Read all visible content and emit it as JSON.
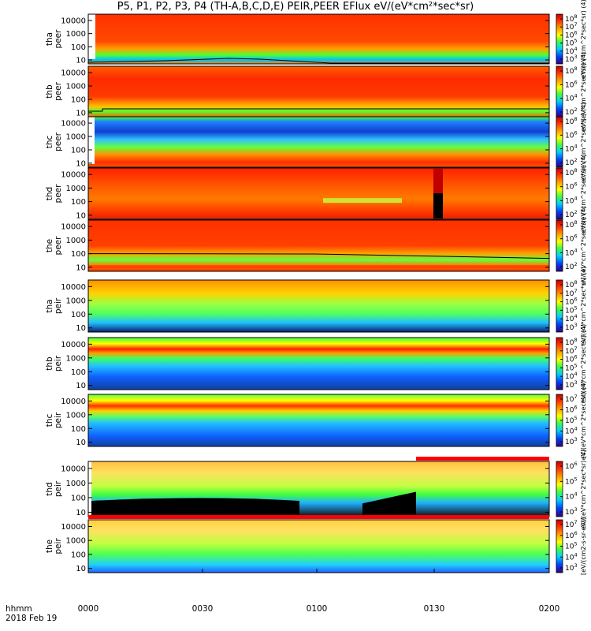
{
  "title": "P5, P1, P2, P3, P4 (TH-A,B,C,D,E) PEIR,PEER EFlux eV/(eV*cm²*sec*sr)",
  "time_axis": {
    "row1": "hhmm",
    "row2": "2018 Feb 19",
    "ticks": [
      "0000",
      "0030",
      "0100",
      "0130",
      "0200"
    ]
  },
  "colorbar_unit_label": "[eV/(cm2-s-sr-eV)]",
  "chart_data": [
    {
      "type": "heatmap",
      "probe": "tha",
      "species": "peer",
      "ylabel": [
        "tha",
        "peer"
      ],
      "y_ticks": [
        "10000",
        "1000",
        "100",
        "10"
      ],
      "ylim": [
        5,
        30000
      ],
      "y_scale": "log",
      "cbar_ticks": [
        "10^8",
        "10^7",
        "10^6",
        "10^5",
        "10^4",
        "10^3"
      ],
      "cbar_label": "eV/(eV*cm^2*sec*sr) (4)"
    },
    {
      "type": "heatmap",
      "probe": "thb",
      "species": "peer",
      "ylabel": [
        "thb",
        "peer"
      ],
      "y_ticks": [
        "10000",
        "1000",
        "100",
        "10"
      ],
      "ylim": [
        5,
        30000
      ],
      "y_scale": "log",
      "cbar_ticks": [
        "10^8",
        "10^6",
        "10^4",
        "10^2"
      ],
      "cbar_label": "eV/(eV*cm^2*sec*sr) (4)"
    },
    {
      "type": "heatmap",
      "probe": "thc",
      "species": "peer",
      "ylabel": [
        "thc",
        "peer"
      ],
      "y_ticks": [
        "10000",
        "1000",
        "100",
        "10"
      ],
      "ylim": [
        5,
        30000
      ],
      "y_scale": "log",
      "cbar_ticks": [
        "10^8",
        "10^6",
        "10^4",
        "10^2"
      ],
      "cbar_label": "eV/(eV*cm^2*sec*sr) (4)"
    },
    {
      "type": "heatmap",
      "probe": "thd",
      "species": "peer",
      "ylabel": [
        "thd",
        "peer"
      ],
      "y_ticks": [
        "10000",
        "1000",
        "100",
        "10"
      ],
      "ylim": [
        5,
        30000
      ],
      "y_scale": "log",
      "cbar_ticks": [
        "10^8",
        "10^6",
        "10^4",
        "10^2"
      ],
      "cbar_label": "eV/(eV*cm^2*sec*sr) (4)"
    },
    {
      "type": "heatmap",
      "probe": "the",
      "species": "peer",
      "ylabel": [
        "the",
        "peer"
      ],
      "y_ticks": [
        "10000",
        "1000",
        "100",
        "10"
      ],
      "ylim": [
        5,
        30000
      ],
      "y_scale": "log",
      "cbar_ticks": [
        "10^8",
        "10^6",
        "10^4",
        "10^2"
      ],
      "cbar_label": "eV/(eV*cm^2*sec*sr) (4)"
    },
    {
      "type": "heatmap",
      "probe": "tha",
      "species": "peir",
      "ylabel": [
        "tha",
        "peir"
      ],
      "y_ticks": [
        "10000",
        "1000",
        "100",
        "10"
      ],
      "ylim": [
        5,
        30000
      ],
      "y_scale": "log",
      "cbar_ticks": [
        "10^8",
        "10^7",
        "10^6",
        "10^5",
        "10^4",
        "10^3"
      ],
      "cbar_label": "eV/(eV*cm^2*sec*sr) (4)"
    },
    {
      "type": "heatmap",
      "probe": "thb",
      "species": "peir",
      "ylabel": [
        "thb",
        "peir"
      ],
      "y_ticks": [
        "10000",
        "1000",
        "100",
        "10"
      ],
      "ylim": [
        5,
        30000
      ],
      "y_scale": "log",
      "cbar_ticks": [
        "10^8",
        "10^7",
        "10^6",
        "10^5",
        "10^4",
        "10^3"
      ],
      "cbar_label": "eV/(eV*cm^2*sec*sr) (4)"
    },
    {
      "type": "heatmap",
      "probe": "thc",
      "species": "peir",
      "ylabel": [
        "thc",
        "peir"
      ],
      "y_ticks": [
        "10000",
        "1000",
        "100",
        "10"
      ],
      "ylim": [
        5,
        30000
      ],
      "y_scale": "log",
      "cbar_ticks": [
        "10^7",
        "10^6",
        "10^5",
        "10^4",
        "10^3"
      ],
      "cbar_label": "eV/(eV*cm^2*sec*sr) (4)"
    },
    {
      "type": "heatmap",
      "probe": "thd",
      "species": "peir",
      "ylabel": [
        "thd",
        "peir"
      ],
      "y_ticks": [
        "10000",
        "1000",
        "100",
        "10"
      ],
      "ylim": [
        5,
        30000
      ],
      "y_scale": "log",
      "cbar_ticks": [
        "10^6",
        "10^5",
        "10^4",
        "10^3"
      ],
      "cbar_label": "eV/(eV*cm^2*sec*sr) (4)"
    },
    {
      "type": "heatmap",
      "probe": "the",
      "species": "peir",
      "ylabel": [
        "the",
        "peir"
      ],
      "y_ticks": [
        "10000",
        "1000",
        "100",
        "10"
      ],
      "ylim": [
        5,
        30000
      ],
      "y_scale": "log",
      "cbar_ticks": [
        "10^7",
        "10^6",
        "10^5",
        "10^4",
        "10^3"
      ],
      "cbar_label": "[eV/(cm2-s-sr-eV)]"
    }
  ]
}
